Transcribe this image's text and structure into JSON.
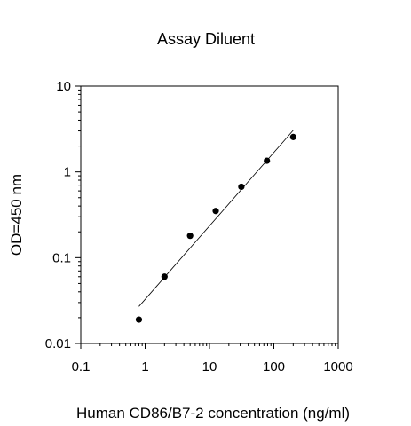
{
  "chart_data": {
    "type": "scatter",
    "title": "Assay Diluent",
    "xlabel": "Human CD86/B7-2 concentration (ng/ml)",
    "ylabel": "OD=450 nm",
    "xscale": "log",
    "yscale": "log",
    "xlim": [
      0.1,
      1000
    ],
    "ylim": [
      0.01,
      10
    ],
    "xticks": [
      "0.1",
      "1",
      "10",
      "100",
      "1000"
    ],
    "yticks": [
      "0.01",
      "0.1",
      "1",
      "10"
    ],
    "grid": false,
    "legend": "none",
    "series": [
      {
        "x": [
          0.8,
          2,
          5,
          12.5,
          31.25,
          78,
          200
        ],
        "y": [
          0.019,
          0.06,
          0.18,
          0.35,
          0.67,
          1.35,
          2.55
        ]
      }
    ],
    "fit_line": {
      "x": [
        0.8,
        200
      ],
      "y": [
        0.027,
        3.05
      ]
    },
    "colors": {
      "points": "#000000",
      "line": "#000000",
      "axes": "#000000"
    }
  }
}
